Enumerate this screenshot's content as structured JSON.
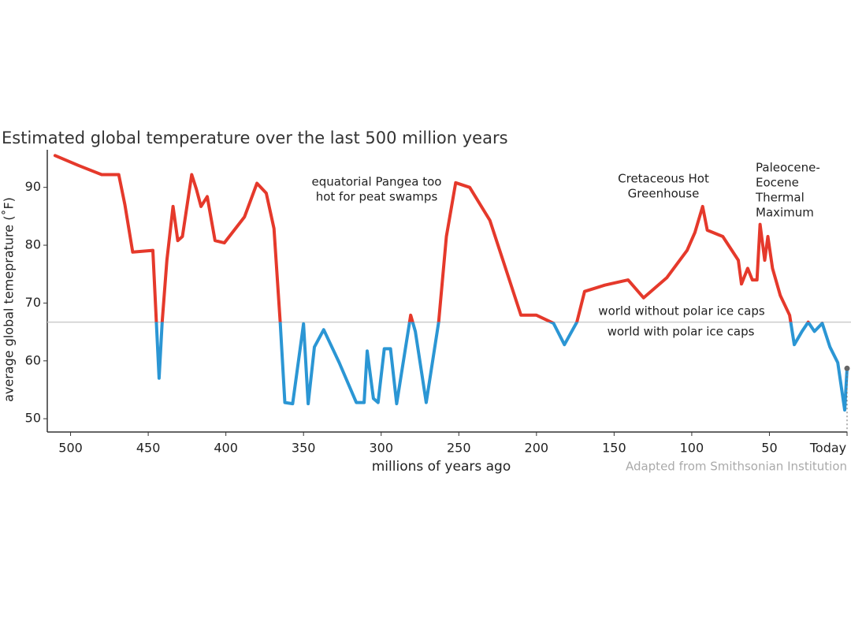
{
  "chart_data": {
    "type": "line",
    "title": "Estimated global temperature over the last 500 million years",
    "x_label": "millions of years ago",
    "y_label": "average global temeprature (˚F)",
    "source": "Adapted from Smithsonian Institution",
    "xlim": [
      515,
      0
    ],
    "ylim": [
      47.7,
      96.5
    ],
    "xticks": [
      500,
      450,
      400,
      350,
      300,
      250,
      200,
      150,
      100,
      50,
      {
        "value": 0,
        "label": "Today"
      }
    ],
    "yticks": [
      50,
      60,
      70,
      80,
      90
    ],
    "threshold": 66.7,
    "threshold_labels": {
      "above": "world without polar ice caps",
      "below": "world with polar ice caps"
    },
    "colors": {
      "above": "#e5392b",
      "below": "#2b96d4"
    },
    "annotations": [
      {
        "lines": [
          "equatorial Pangea too",
          "hot for peat swamps"
        ]
      },
      {
        "lines": [
          "Cretaceous Hot",
          "Greenhouse"
        ]
      },
      {
        "lines": [
          "Paleocene-",
          "Eocene",
          "Thermal",
          "Maximum"
        ]
      }
    ],
    "series": [
      {
        "name": "temperature",
        "x": [
          510,
          495,
          480,
          469,
          465,
          460,
          447,
          443,
          441,
          438,
          434,
          431,
          428,
          422,
          419,
          416,
          412,
          407,
          401,
          388,
          380,
          374,
          369,
          365,
          362,
          357,
          350,
          347,
          343,
          337,
          327,
          316,
          311,
          309,
          305,
          302,
          298,
          294,
          290,
          281,
          278,
          271,
          263,
          258,
          252,
          243,
          230,
          210,
          200,
          189,
          182,
          174,
          169,
          156,
          141,
          131,
          116,
          103,
          98,
          93,
          90,
          80,
          70,
          68,
          64,
          61,
          58,
          56,
          53,
          51,
          48,
          43,
          37,
          34,
          29,
          25,
          21,
          16,
          11,
          6,
          1.5,
          0
        ],
        "values": [
          95.5,
          93.8,
          92.2,
          92.2,
          87,
          78.8,
          79.1,
          57,
          66.7,
          77.4,
          86.7,
          80.8,
          81.5,
          92.2,
          89.7,
          86.7,
          88.4,
          80.8,
          80.4,
          84.9,
          90.7,
          89,
          82.9,
          66.7,
          52.8,
          52.6,
          66.4,
          52.6,
          62.4,
          65.4,
          59.7,
          52.8,
          52.8,
          61.7,
          53.5,
          52.8,
          62.1,
          62.1,
          52.6,
          67.9,
          65.1,
          52.8,
          66.7,
          81.5,
          90.8,
          90,
          84.3,
          67.9,
          67.9,
          66.5,
          62.8,
          66.7,
          72,
          73.1,
          74,
          70.9,
          74.4,
          79.1,
          82.2,
          86.7,
          82.6,
          81.5,
          77.4,
          73.3,
          76,
          74,
          74,
          83.6,
          77.4,
          81.5,
          76,
          71.3,
          67.9,
          62.8,
          65.1,
          66.7,
          65.1,
          66.5,
          62.4,
          59.7,
          51.5,
          58.7
        ]
      }
    ]
  }
}
